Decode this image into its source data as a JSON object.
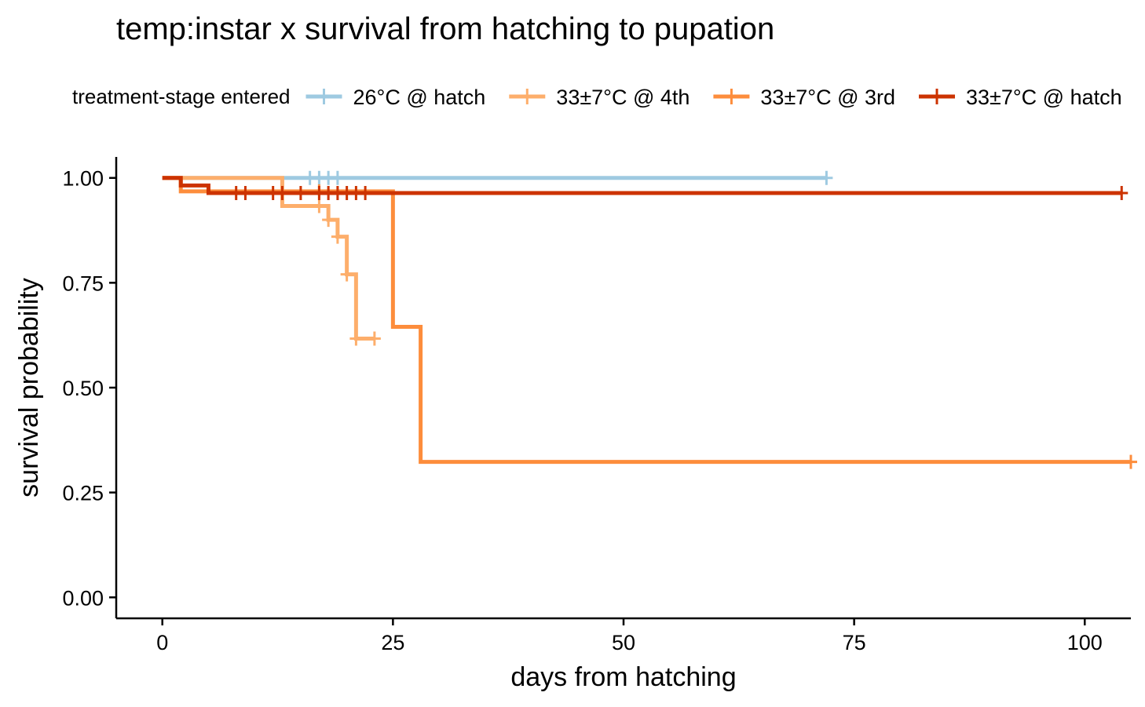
{
  "chart_data": {
    "type": "line",
    "title": "temp:instar x survival from hatching to pupation",
    "xlabel": "days from hatching",
    "ylabel": "survival probability",
    "xlim": [
      -5,
      105
    ],
    "ylim": [
      -0.05,
      1.05
    ],
    "xticks": [
      0,
      25,
      50,
      75,
      100
    ],
    "xtick_labels": [
      "0",
      "25",
      "50",
      "75",
      "100"
    ],
    "yticks": [
      0,
      0.25,
      0.5,
      0.75,
      1.0
    ],
    "ytick_labels": [
      "0.00",
      "0.25",
      "0.50",
      "0.75",
      "1.00"
    ],
    "grid": false,
    "legend": {
      "position": "top",
      "title": "treatment-stage entered"
    },
    "series": [
      {
        "name": "26°C @ hatch",
        "color": "#9ecae1",
        "steps": [
          [
            0,
            1.0
          ],
          [
            72,
            1.0
          ]
        ],
        "censor": [
          [
            16,
            1.0
          ],
          [
            17,
            1.0
          ],
          [
            18,
            1.0
          ],
          [
            19,
            1.0
          ],
          [
            72,
            1.0
          ]
        ]
      },
      {
        "name": "33±7°C @ 4th",
        "color": "#fdae6b",
        "steps": [
          [
            0,
            1.0
          ],
          [
            12,
            1.0
          ],
          [
            13,
            0.933
          ],
          [
            18,
            0.9
          ],
          [
            19,
            0.86
          ],
          [
            20,
            0.77
          ],
          [
            21,
            0.617
          ],
          [
            23,
            0.617
          ]
        ],
        "censor": [
          [
            17,
            0.933
          ],
          [
            18,
            0.9
          ],
          [
            19,
            0.86
          ],
          [
            20,
            0.77
          ],
          [
            21,
            0.617
          ],
          [
            23,
            0.617
          ]
        ]
      },
      {
        "name": "33±7°C @ 3rd",
        "color": "#fd8d3c",
        "steps": [
          [
            0,
            1.0
          ],
          [
            2,
            0.968
          ],
          [
            25,
            0.645
          ],
          [
            28,
            0.323
          ],
          [
            105,
            0.323
          ]
        ],
        "censor": [
          [
            17,
            0.968
          ],
          [
            105,
            0.323
          ]
        ]
      },
      {
        "name": "33±7°C @ hatch",
        "color": "#cc3300",
        "steps": [
          [
            0,
            1.0
          ],
          [
            2,
            0.982
          ],
          [
            5,
            0.964
          ],
          [
            104,
            0.964
          ]
        ],
        "censor": [
          [
            8,
            0.964
          ],
          [
            9,
            0.964
          ],
          [
            12,
            0.964
          ],
          [
            13,
            0.964
          ],
          [
            15,
            0.964
          ],
          [
            17,
            0.964
          ],
          [
            18,
            0.964
          ],
          [
            19,
            0.964
          ],
          [
            20,
            0.964
          ],
          [
            21,
            0.964
          ],
          [
            22,
            0.964
          ],
          [
            104,
            0.964
          ]
        ]
      }
    ]
  }
}
